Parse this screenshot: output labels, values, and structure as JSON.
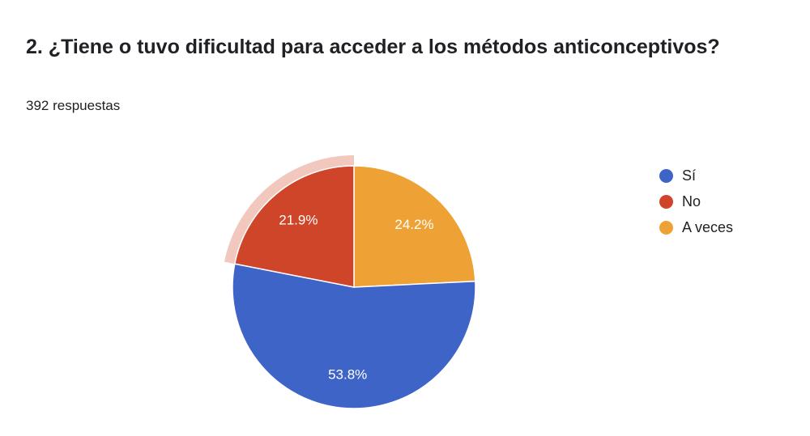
{
  "question": {
    "title": "2. ¿Tiene o tuvo dificultad para acceder a los métodos anticonceptivos?",
    "responses": "392 respuestas"
  },
  "chart_data": {
    "type": "pie",
    "categories": [
      "Sí",
      "No",
      "A veces"
    ],
    "values": [
      53.8,
      21.9,
      24.2
    ],
    "value_labels": [
      "53.8%",
      "21.9%",
      "24.2%"
    ],
    "colors": [
      "#3e64c8",
      "#cf4529",
      "#eea235"
    ],
    "highlighted": "No",
    "legend_position": "right"
  }
}
